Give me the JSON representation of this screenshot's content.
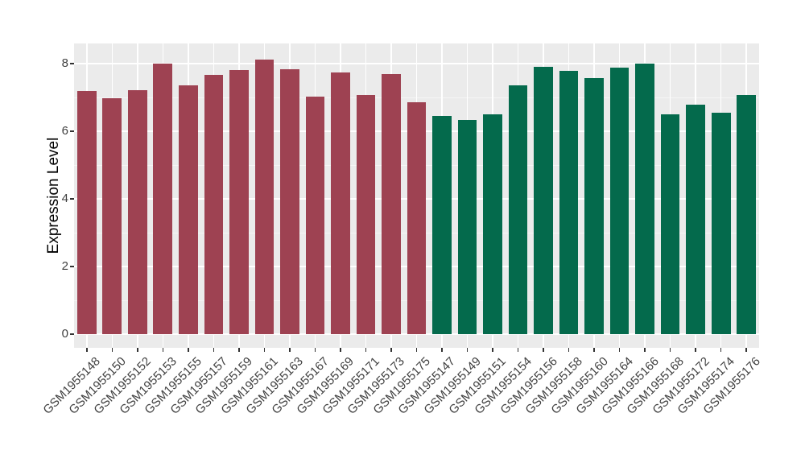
{
  "chart_data": {
    "type": "bar",
    "title": "",
    "xlabel": "",
    "ylabel": "Expression Level",
    "ylim": [
      0,
      8.6
    ],
    "yticks": [
      0,
      2,
      4,
      6,
      8
    ],
    "grid": true,
    "legend_position": "none",
    "panel_bg": "#EBEBEB",
    "grid_major_color": "#FFFFFF",
    "grid_minor_color": "#F5F5F5",
    "axis_text_color": "#404040",
    "tick_mark_color": "#333333",
    "group_colors": {
      "group1": "#9E4252",
      "group2": "#046A4C"
    },
    "bars": [
      {
        "label": "GSM1955148",
        "value": 7.2,
        "group": "group1"
      },
      {
        "label": "GSM1955150",
        "value": 6.98,
        "group": "group1"
      },
      {
        "label": "GSM1955152",
        "value": 7.21,
        "group": "group1"
      },
      {
        "label": "GSM1955153",
        "value": 8.01,
        "group": "group1"
      },
      {
        "label": "GSM1955155",
        "value": 7.36,
        "group": "group1"
      },
      {
        "label": "GSM1955157",
        "value": 7.66,
        "group": "group1"
      },
      {
        "label": "GSM1955159",
        "value": 7.8,
        "group": "group1"
      },
      {
        "label": "GSM1955161",
        "value": 8.13,
        "group": "group1"
      },
      {
        "label": "GSM1955163",
        "value": 7.83,
        "group": "group1"
      },
      {
        "label": "GSM1955167",
        "value": 7.02,
        "group": "group1"
      },
      {
        "label": "GSM1955169",
        "value": 7.73,
        "group": "group1"
      },
      {
        "label": "GSM1955171",
        "value": 7.08,
        "group": "group1"
      },
      {
        "label": "GSM1955173",
        "value": 7.69,
        "group": "group1"
      },
      {
        "label": "GSM1955175",
        "value": 6.86,
        "group": "group1"
      },
      {
        "label": "GSM1955147",
        "value": 6.45,
        "group": "group2"
      },
      {
        "label": "GSM1955149",
        "value": 6.33,
        "group": "group2"
      },
      {
        "label": "GSM1955151",
        "value": 6.5,
        "group": "group2"
      },
      {
        "label": "GSM1955154",
        "value": 7.36,
        "group": "group2"
      },
      {
        "label": "GSM1955156",
        "value": 7.9,
        "group": "group2"
      },
      {
        "label": "GSM1955158",
        "value": 7.79,
        "group": "group2"
      },
      {
        "label": "GSM1955160",
        "value": 7.57,
        "group": "group2"
      },
      {
        "label": "GSM1955164",
        "value": 7.88,
        "group": "group2"
      },
      {
        "label": "GSM1955166",
        "value": 7.99,
        "group": "group2"
      },
      {
        "label": "GSM1955168",
        "value": 6.5,
        "group": "group2"
      },
      {
        "label": "GSM1955172",
        "value": 6.78,
        "group": "group2"
      },
      {
        "label": "GSM1955174",
        "value": 6.55,
        "group": "group2"
      },
      {
        "label": "GSM1955176",
        "value": 7.08,
        "group": "group2"
      }
    ]
  }
}
